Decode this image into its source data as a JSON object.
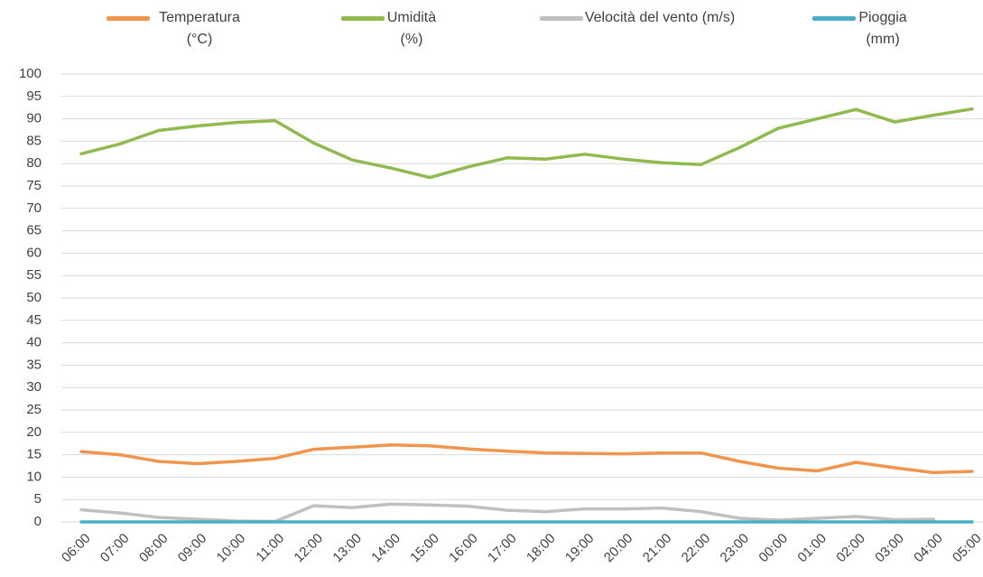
{
  "chart_data": {
    "type": "line",
    "categories": [
      "06:00",
      "07:00",
      "08:00",
      "09:00",
      "10:00",
      "11:00",
      "12:00",
      "13:00",
      "14:00",
      "15:00",
      "16:00",
      "17:00",
      "18:00",
      "19:00",
      "20:00",
      "21:00",
      "22:00",
      "23:00",
      "00:00",
      "01:00",
      "02:00",
      "03:00",
      "04:00",
      "05:00"
    ],
    "series": [
      {
        "name": "Temperatura (°C)",
        "color": "#f0954d",
        "values": [
          15.7,
          15.0,
          13.5,
          13.0,
          13.5,
          14.2,
          16.2,
          16.7,
          17.2,
          17.0,
          16.3,
          15.8,
          15.4,
          15.3,
          15.2,
          15.4,
          15.4,
          13.5,
          12.0,
          11.4,
          13.3,
          12.1,
          11.0,
          11.3
        ]
      },
      {
        "name": "Umidità (%)",
        "color": "#8fba4e",
        "values": [
          82.2,
          84.4,
          87.4,
          88.4,
          89.2,
          89.6,
          84.6,
          80.8,
          79.0,
          76.9,
          79.3,
          81.3,
          81.0,
          82.1,
          81.0,
          80.2,
          79.8,
          83.6,
          87.9,
          90.0,
          92.1,
          89.3,
          90.8,
          92.2
        ]
      },
      {
        "name": "Velocità del vento (m/s)",
        "color": "#c0c0c0",
        "values": [
          2.7,
          2.0,
          1.0,
          0.6,
          0.2,
          0.1,
          3.6,
          3.2,
          4.0,
          3.8,
          3.5,
          2.6,
          2.3,
          2.9,
          2.9,
          3.1,
          2.3,
          0.8,
          0.4,
          0.8,
          1.2,
          0.5,
          0.6,
          null
        ]
      },
      {
        "name": "Pioggia (mm)",
        "color": "#4aaec6",
        "values": [
          0,
          0,
          0,
          0,
          0,
          0,
          0,
          0,
          0,
          0,
          0,
          0,
          0,
          0,
          0,
          0,
          0,
          0,
          0,
          0,
          0,
          0,
          0,
          0
        ]
      }
    ],
    "ylim": [
      0,
      100
    ],
    "yticks": [
      0,
      5,
      10,
      15,
      20,
      25,
      30,
      35,
      40,
      45,
      50,
      55,
      60,
      65,
      70,
      75,
      80,
      85,
      90,
      95,
      100
    ],
    "grid": true,
    "legend": "top"
  }
}
